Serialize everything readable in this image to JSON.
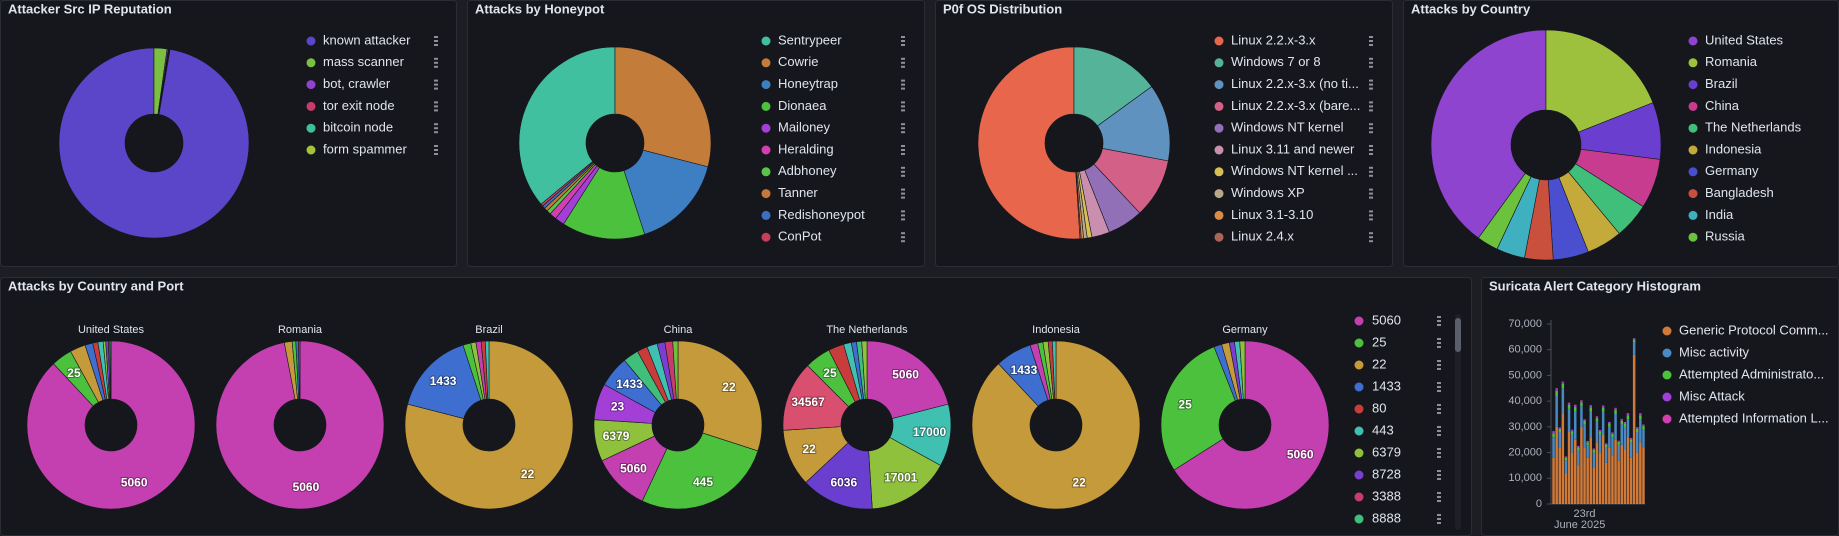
{
  "chart_data": [
    {
      "type": "donut",
      "title": "Attacker Src IP Reputation",
      "categories": [
        "known attacker",
        "mass scanner",
        "bot, crawler",
        "tor exit node",
        "bitcoin node",
        "form spammer"
      ],
      "values": [
        97.3,
        2.2,
        0.2,
        0.1,
        0.1,
        0.1
      ],
      "colors": [
        "#5b45c9",
        "#7cc043",
        "#8e44ce",
        "#c83c6b",
        "#3fbf9a",
        "#a6c13a"
      ]
    },
    {
      "type": "donut",
      "title": "Attacks by Honeypot",
      "categories": [
        "Sentrypeer",
        "Cowrie",
        "Honeytrap",
        "Dionaea",
        "Mailoney",
        "Heralding",
        "Adbhoney",
        "Tanner",
        "Redishoneypot",
        "ConPot"
      ],
      "values": [
        36,
        29,
        16,
        14,
        1.6,
        1.2,
        0.7,
        0.6,
        0.5,
        0.4
      ],
      "colors": [
        "#41c0a0",
        "#c47c3a",
        "#3e7fc4",
        "#4cc13d",
        "#a33fd6",
        "#d23fb0",
        "#5bc24a",
        "#c4793a",
        "#3e6fc4",
        "#c83c5c"
      ]
    },
    {
      "type": "donut",
      "title": "P0f OS Distribution",
      "categories": [
        "Linux 2.2.x-3.x",
        "Windows 7 or 8",
        "Linux 2.2.x-3.x (no ti...",
        "Linux 2.2.x-3.x (bare...",
        "Windows NT kernel",
        "Linux 3.11 and newer",
        "Windows NT kernel ...",
        "Windows XP",
        "Linux 3.1-3.10",
        "Linux 2.4.x"
      ],
      "values": [
        51,
        15,
        13,
        10,
        6,
        3,
        0.8,
        0.6,
        0.4,
        0.2
      ],
      "colors": [
        "#e8674c",
        "#54b399",
        "#6092c0",
        "#d36086",
        "#9170b8",
        "#ca8eae",
        "#d6bf57",
        "#b9a888",
        "#da8b45",
        "#aa6556"
      ]
    },
    {
      "type": "donut",
      "title": "Attacks by Country",
      "categories": [
        "United States",
        "Romania",
        "Brazil",
        "China",
        "The Netherlands",
        "Indonesia",
        "Germany",
        "Bangladesh",
        "India",
        "Russia"
      ],
      "values": [
        40,
        19,
        8,
        7,
        5,
        5,
        5,
        4,
        4,
        3
      ],
      "colors": [
        "#8e44ce",
        "#9dc13d",
        "#6a3fd0",
        "#c83c8f",
        "#3fbf7a",
        "#c4aa3a",
        "#4a4fd0",
        "#c8503c",
        "#3fb0c0",
        "#6cc13d"
      ]
    },
    {
      "type": "donut-multiples",
      "title": "Attacks by Country and Port",
      "legend": {
        "categories": [
          "5060",
          "25",
          "22",
          "1433",
          "80",
          "443",
          "6379",
          "8728",
          "3388",
          "8888"
        ],
        "colors": [
          "#c43fb0",
          "#4cc13d",
          "#c49a3a",
          "#3e6fd0",
          "#c83c3c",
          "#3fc0b0",
          "#8fc13d",
          "#7a3fd0",
          "#c83c6b",
          "#3fbf7a"
        ]
      },
      "series": [
        {
          "name": "United States",
          "categories": [
            "5060",
            "25",
            "22",
            "1433",
            "80",
            "443",
            "6379",
            "8728",
            "3388",
            "8888"
          ],
          "values": [
            88,
            4,
            3,
            1.5,
            1,
            1,
            0.5,
            0.5,
            0.3,
            0.2
          ],
          "colors": [
            "#c43fb0",
            "#4cc13d",
            "#c49a3a",
            "#3e6fd0",
            "#c83c3c",
            "#3fc0b0",
            "#8fc13d",
            "#7a3fd0",
            "#c83c6b",
            "#3fbf7a"
          ]
        },
        {
          "name": "Romania",
          "categories": [
            "5060",
            "22",
            "25",
            "1433",
            "80"
          ],
          "values": [
            97,
            1.5,
            0.7,
            0.5,
            0.3
          ],
          "colors": [
            "#c43fb0",
            "#c49a3a",
            "#4cc13d",
            "#3e6fd0",
            "#c83c3c"
          ]
        },
        {
          "name": "Brazil",
          "categories": [
            "22",
            "1433",
            "25",
            "6379",
            "5060",
            "80",
            "443"
          ],
          "values": [
            79,
            16,
            1.5,
            1,
            1,
            0.8,
            0.7
          ],
          "colors": [
            "#c49a3a",
            "#3e6fd0",
            "#4cc13d",
            "#8fc13d",
            "#c43fb0",
            "#c83c3c",
            "#3fc0b0"
          ]
        },
        {
          "name": "China",
          "categories": [
            "22",
            "445",
            "5060",
            "6379",
            "23",
            "1433",
            "25",
            "80",
            "443",
            "8728",
            "3388",
            "8888"
          ],
          "values": [
            30,
            27,
            11,
            8,
            7,
            6,
            3,
            2,
            2,
            1.5,
            1.5,
            1
          ],
          "colors": [
            "#c49a3a",
            "#4cc13d",
            "#c43fb0",
            "#8fc13d",
            "#a33fd6",
            "#3e6fd0",
            "#3fbf7a",
            "#c83c3c",
            "#3fc0b0",
            "#7a3fd0",
            "#c83c6b",
            "#6cc13d"
          ]
        },
        {
          "name": "The Netherlands",
          "categories": [
            "5060",
            "17000",
            "17001",
            "6036",
            "22",
            "34567",
            "25",
            "80",
            "443",
            "1433",
            "8888",
            "6379"
          ],
          "values": [
            21,
            12,
            16,
            14,
            11,
            13.5,
            5,
            3,
            1.5,
            1,
            1,
            1
          ],
          "colors": [
            "#c43fb0",
            "#3fc0b0",
            "#8fc13d",
            "#6a3fd0",
            "#c49a3a",
            "#d94f6f",
            "#4cc13d",
            "#c83c3c",
            "#3fc0b0",
            "#3e6fd0",
            "#3fbf7a",
            "#8fc13d"
          ]
        },
        {
          "name": "Indonesia",
          "categories": [
            "22",
            "1433",
            "5060",
            "25",
            "6379",
            "80",
            "443"
          ],
          "values": [
            88,
            7,
            1.5,
            1,
            1,
            0.8,
            0.7
          ],
          "colors": [
            "#c49a3a",
            "#3e6fd0",
            "#c43fb0",
            "#4cc13d",
            "#8fc13d",
            "#c83c3c",
            "#3fc0b0"
          ]
        },
        {
          "name": "Germany",
          "categories": [
            "5060",
            "25",
            "1433",
            "22",
            "8728",
            "443",
            "6379"
          ],
          "values": [
            66,
            28,
            1.5,
            1.5,
            1,
            1,
            1
          ],
          "colors": [
            "#c43fb0",
            "#4cc13d",
            "#3e6fd0",
            "#c49a3a",
            "#7a3fd0",
            "#3fc0b0",
            "#8fc13d"
          ]
        }
      ]
    },
    {
      "type": "stacked-bar",
      "title": "Suricata Alert Category Histogram",
      "categories": [
        null,
        null,
        null,
        null,
        null,
        null,
        null,
        null,
        null,
        null,
        "23rd",
        null,
        null,
        null,
        null,
        null,
        null,
        null,
        null,
        null,
        null,
        null,
        null,
        null,
        null,
        null,
        null,
        null,
        null,
        null
      ],
      "xlabel": "June 2025",
      "ylim": [
        0,
        70000
      ],
      "yticks": [
        0,
        {
          "value": 10000,
          "label": "10,000"
        },
        {
          "value": 20000,
          "label": "20,000"
        },
        {
          "value": 30000,
          "label": "30,000"
        },
        {
          "value": 40000,
          "label": "40,000"
        },
        {
          "value": 50000,
          "label": "50,000"
        },
        {
          "value": 60000,
          "label": "60,000"
        },
        {
          "value": 70000,
          "label": "70,000"
        }
      ],
      "series": [
        {
          "name": "Generic Protocol Comm...",
          "color": "#d07a3a",
          "values": [
            18000,
            30000,
            22000,
            35000,
            12000,
            28000,
            20000,
            25000,
            15000,
            30000,
            22000,
            18000,
            26000,
            14000,
            24000,
            20000,
            27000,
            16000,
            22000,
            19000,
            25000,
            17000,
            23000,
            21000,
            26000,
            18000,
            58000,
            20000,
            24000,
            22000
          ]
        },
        {
          "name": "Misc activity",
          "color": "#4a8ac4",
          "values": [
            8000,
            12000,
            6000,
            10000,
            5000,
            9000,
            7000,
            11000,
            6000,
            8000,
            9000,
            5000,
            10000,
            6000,
            8000,
            7000,
            9000,
            6000,
            8000,
            7000,
            10000,
            6000,
            8000,
            9000,
            7000,
            6000,
            5000,
            8000,
            9000,
            7000
          ]
        },
        {
          "name": "Attempted Administrato...",
          "color": "#4cc13d",
          "values": [
            1500,
            2000,
            1200,
            1800,
            1000,
            1600,
            1300,
            1700,
            1100,
            1500,
            1400,
            1000,
            1600,
            1100,
            1400,
            1200,
            1500,
            1100,
            1300,
            1200,
            1600,
            1100,
            1400,
            1300,
            1500,
            1200,
            1000,
            1300,
            1500,
            1300
          ]
        },
        {
          "name": "Misc Attack",
          "color": "#a33fd6",
          "values": [
            500,
            600,
            400,
            500,
            300,
            500,
            400,
            600,
            300,
            500,
            400,
            300,
            500,
            300,
            400,
            400,
            500,
            300,
            400,
            400,
            500,
            300,
            400,
            400,
            500,
            300,
            300,
            400,
            500,
            400
          ]
        },
        {
          "name": "Attempted Information L...",
          "color": "#d23fb0",
          "values": [
            300,
            400,
            200,
            300,
            200,
            300,
            200,
            300,
            200,
            300,
            200,
            200,
            300,
            200,
            300,
            200,
            300,
            200,
            200,
            200,
            300,
            200,
            300,
            200,
            300,
            200,
            200,
            200,
            300,
            200
          ]
        }
      ]
    }
  ]
}
